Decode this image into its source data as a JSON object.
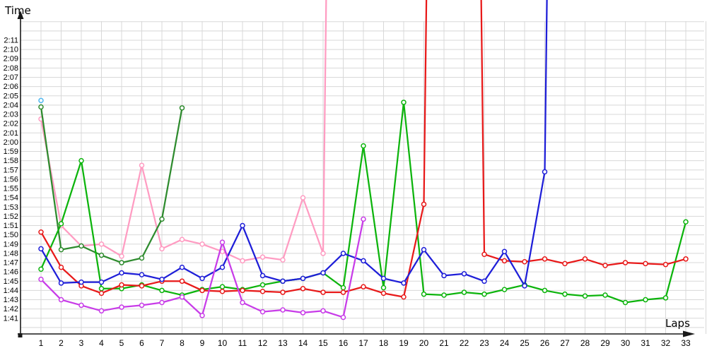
{
  "chart_data": {
    "type": "line",
    "title": "",
    "xlabel": "Laps",
    "ylabel": "Time",
    "legend": false,
    "grid": true,
    "background": "#ffffff",
    "grid_color": "#d8d8d8",
    "axis_color": "#1a1a1a",
    "text_color": "#000000",
    "ylim": [
      "1:40",
      "2:13"
    ],
    "y_ticks": [
      "1:41",
      "1:42",
      "1:43",
      "1:44",
      "1:45",
      "1:46",
      "1:47",
      "1:48",
      "1:49",
      "1:50",
      "1:51",
      "1:52",
      "1:53",
      "1:54",
      "1:55",
      "1:56",
      "1:57",
      "1:58",
      "1:59",
      "2:00",
      "2:01",
      "2:02",
      "2:03",
      "2:04",
      "2:05",
      "2:06",
      "2:07",
      "2:08",
      "2:09",
      "2:10",
      "2:11"
    ],
    "x_ticks": [
      "1",
      "2",
      "3",
      "4",
      "5",
      "6",
      "7",
      "8",
      "9",
      "10",
      "11",
      "12",
      "13",
      "14",
      "15",
      "16",
      "17",
      "18",
      "19",
      "20",
      "21",
      "22",
      "23",
      "24",
      "25",
      "26",
      "27",
      "28",
      "29",
      "30",
      "31",
      "32",
      "33"
    ],
    "off_scale_marker": "off",
    "series": [
      {
        "name": "pink",
        "color": "#ff9cc2",
        "values": [
          "2:02.5",
          "1:51.0",
          "1:48.8",
          "1:49.0",
          "1:47.7",
          "1:57.5",
          "1:48.5",
          "1:49.5",
          "1:49.0",
          "1:48.2",
          "1:47.2",
          "1:47.6",
          "1:47.3",
          "1:54.0",
          "1:48.0",
          "off",
          null,
          null,
          null,
          null,
          null,
          null,
          null,
          null,
          null,
          null,
          null,
          null,
          null,
          null,
          null,
          null,
          null
        ]
      },
      {
        "name": "dark-green",
        "color": "#2e8b2e",
        "values": [
          "2:03.8",
          "1:48.4",
          "1:48.8",
          "1:47.8",
          "1:47.0",
          "1:47.5",
          "1:51.7",
          "2:03.7",
          null,
          null,
          null,
          null,
          null,
          null,
          null,
          null,
          null,
          null,
          null,
          null,
          null,
          null,
          null,
          null,
          null,
          null,
          null,
          null,
          null,
          null,
          null,
          null,
          null
        ]
      },
      {
        "name": "green",
        "color": "#0cb40c",
        "values": [
          "1:46.3",
          "1:51.2",
          "1:58.0",
          "1:44.2",
          "1:44.2",
          "1:44.6",
          "1:44.0",
          "1:43.5",
          "1:44.1",
          "1:44.4",
          "1:44.1",
          "1:44.6",
          "1:45.0",
          "1:45.3",
          "1:45.9",
          "1:44.3",
          "1:59.6",
          "1:44.3",
          "2:04.3",
          "1:43.6",
          "1:43.5",
          "1:43.8",
          "1:43.6",
          "1:44.1",
          "1:44.6",
          "1:44.0",
          "1:43.6",
          "1:43.4",
          "1:43.5",
          "1:42.7",
          "1:43.0",
          "1:43.2",
          "1:51.4"
        ]
      },
      {
        "name": "red",
        "color": "#e81919",
        "values": [
          "1:50.3",
          "1:46.5",
          "1:44.5",
          "1:43.7",
          "1:44.6",
          "1:44.5",
          "1:45.0",
          "1:45.0",
          "1:44.0",
          "1:43.9",
          "1:44.0",
          "1:43.9",
          "1:43.8",
          "1:44.2",
          "1:43.8",
          "1:43.8",
          "1:44.4",
          "1:43.7",
          "1:43.3",
          "1:53.3",
          "off",
          "off",
          "1:47.9",
          "1:47.2",
          "1:47.1",
          "1:47.4",
          "1:46.9",
          "1:47.4",
          "1:46.7",
          "1:47.0",
          "1:46.9",
          "1:46.8",
          "1:47.4"
        ]
      },
      {
        "name": "blue",
        "color": "#1e1ed8",
        "values": [
          "1:48.5",
          "1:44.8",
          "1:44.9",
          "1:44.9",
          "1:45.9",
          "1:45.7",
          "1:45.2",
          "1:46.5",
          "1:45.3",
          "1:46.5",
          "1:51.0",
          "1:45.6",
          "1:45.0",
          "1:45.3",
          "1:45.9",
          "1:48.0",
          "1:47.2",
          "1:45.3",
          "1:44.8",
          "1:48.4",
          "1:45.6",
          "1:45.8",
          "1:45.0",
          "1:48.2",
          "1:44.5",
          "1:56.8",
          "off",
          null,
          null,
          null,
          null,
          null,
          null
        ]
      },
      {
        "name": "violet",
        "color": "#c83ce8",
        "values": [
          "1:45.2",
          "1:43.0",
          "1:42.4",
          "1:41.8",
          "1:42.2",
          "1:42.4",
          "1:42.7",
          "1:43.3",
          "1:41.3",
          "1:49.2",
          "1:42.7",
          "1:41.7",
          "1:41.9",
          "1:41.6",
          "1:41.8",
          "1:41.1",
          "1:51.7",
          null,
          null,
          null,
          null,
          null,
          null,
          null,
          null,
          null,
          null,
          null,
          null,
          null,
          null,
          null,
          null
        ]
      },
      {
        "name": "light-blue",
        "color": "#52b8f0",
        "values": [
          "2:04.5",
          null,
          null,
          null,
          null,
          null,
          null,
          null,
          null,
          null,
          null,
          null,
          null,
          null,
          null,
          null,
          null,
          null,
          null,
          null,
          null,
          null,
          null,
          null,
          null,
          null,
          null,
          null,
          null,
          null,
          null,
          null,
          null
        ]
      }
    ]
  }
}
